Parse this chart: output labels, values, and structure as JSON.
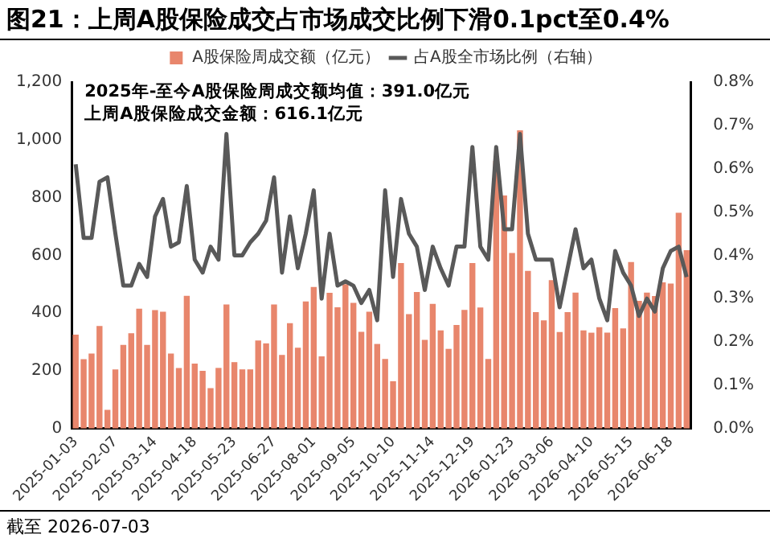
{
  "chart_data": {
    "type": "bar",
    "title": "图21：上周A股保险成交占市场成交比例下滑0.1pct至0.4%",
    "categories": [
      "2025-01-03",
      null,
      null,
      null,
      null,
      "2025-02-07",
      null,
      null,
      null,
      null,
      "2025-03-14",
      null,
      null,
      null,
      null,
      "2025-04-18",
      null,
      null,
      null,
      null,
      "2025-05-23",
      null,
      null,
      null,
      null,
      "2025-06-27",
      null,
      null,
      null,
      null,
      "2025-08-01",
      null,
      null,
      null,
      null,
      "2025-09-05",
      null,
      null,
      null,
      null,
      "2025-10-10",
      null,
      null,
      null,
      null,
      "2025-11-14",
      null,
      null,
      null,
      null,
      "2025-12-19",
      null,
      null,
      null,
      null,
      "2026-01-23",
      null,
      null,
      null,
      null,
      "2026-03-06",
      null,
      null,
      null,
      null,
      "2026-04-10",
      null,
      null,
      null,
      null,
      "2026-05-15",
      null,
      null,
      null,
      null,
      "2026-06-18",
      null,
      null
    ],
    "series": [
      {
        "name": "A股保险周成交额（亿元）",
        "color": "#e8866c",
        "values": [
          325,
          240,
          260,
          355,
          65,
          205,
          290,
          330,
          415,
          290,
          410,
          405,
          260,
          210,
          460,
          225,
          200,
          140,
          210,
          430,
          230,
          205,
          205,
          305,
          295,
          430,
          255,
          365,
          280,
          440,
          490,
          250,
          470,
          420,
          500,
          435,
          335,
          405,
          293,
          241,
          164,
          573,
          396,
          473,
          307,
          432,
          340,
          276,
          359,
          411,
          573,
          419,
          241,
          927,
          807,
          608,
          1033,
          546,
          403,
          375,
          514,
          334,
          403,
          471,
          340,
          332,
          351,
          332,
          417,
          347,
          577,
          442,
          471,
          459,
          506,
          502,
          747,
          618
        ]
      },
      {
        "name": "占A股全市场比例（右轴）",
        "type": "line",
        "axis": "y2",
        "color": "#595959",
        "values": [
          0.61,
          0.44,
          0.44,
          0.57,
          0.58,
          0.45,
          0.33,
          0.33,
          0.38,
          0.35,
          0.49,
          0.53,
          0.42,
          0.43,
          0.56,
          0.39,
          0.36,
          0.42,
          0.39,
          0.68,
          0.4,
          0.4,
          0.43,
          0.45,
          0.48,
          0.58,
          0.36,
          0.49,
          0.37,
          0.45,
          0.55,
          0.3,
          0.45,
          0.33,
          0.34,
          0.33,
          0.29,
          0.32,
          0.25,
          0.55,
          0.35,
          0.53,
          0.45,
          0.42,
          0.32,
          0.42,
          0.37,
          0.33,
          0.42,
          0.42,
          0.65,
          0.42,
          0.39,
          0.65,
          0.46,
          0.46,
          0.68,
          0.45,
          0.39,
          0.39,
          0.39,
          0.28,
          0.37,
          0.46,
          0.37,
          0.39,
          0.3,
          0.25,
          0.41,
          0.36,
          0.33,
          0.26,
          0.3,
          0.27,
          0.37,
          0.41,
          0.42,
          0.35
        ]
      }
    ],
    "ylim": [
      0,
      1200
    ],
    "yticks": [
      0,
      200,
      400,
      600,
      800,
      {
        "value": 1000,
        "label": "1,000"
      },
      {
        "value": 1200,
        "label": "1,200"
      }
    ],
    "y2lim": [
      0,
      0.8
    ],
    "y2ticks": [
      {
        "value": 0,
        "label": "0.0%"
      },
      {
        "value": 0.1,
        "label": "0.1%"
      },
      {
        "value": 0.2,
        "label": "0.2%"
      },
      {
        "value": 0.3,
        "label": "0.3%"
      },
      {
        "value": 0.4,
        "label": "0.4%"
      },
      {
        "value": 0.5,
        "label": "0.5%"
      },
      {
        "value": 0.6,
        "label": "0.6%"
      },
      {
        "value": 0.7,
        "label": "0.7%"
      },
      {
        "value": 0.8,
        "label": "0.8%"
      }
    ],
    "grid": false,
    "legend": "top",
    "annotations": [
      "2025年-至今A股保险周成交额均值：391.0亿元",
      "上周A股保险成交金额：616.1亿元",
      "截至 2026-07-03"
    ]
  }
}
